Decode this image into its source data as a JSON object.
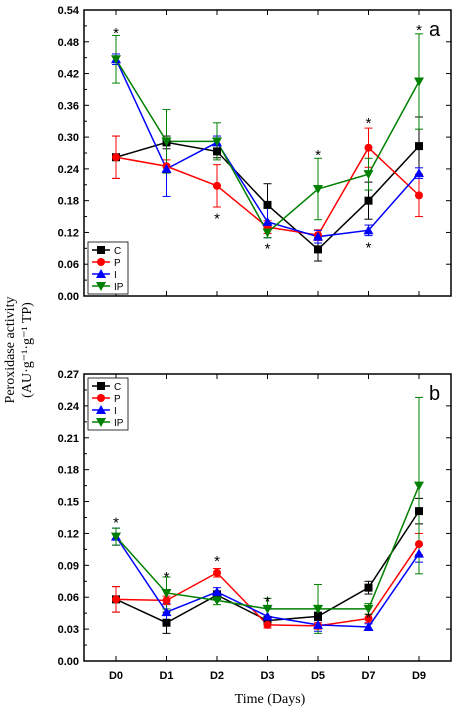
{
  "chart_data": [
    {
      "type": "line",
      "panel_label": "a",
      "categories": [
        "D0",
        "D1",
        "D2",
        "D3",
        "D5",
        "D7",
        "D9"
      ],
      "ylim": [
        0,
        0.54
      ],
      "yticks": [
        "0.00",
        "0.06",
        "0.12",
        "0.18",
        "0.24",
        "0.30",
        "0.36",
        "0.42",
        "0.48",
        "0.54"
      ],
      "series": [
        {
          "name": "C",
          "color": "#000000",
          "marker": "square",
          "values": [
            0.262,
            0.29,
            0.273,
            0.172,
            0.088,
            0.18,
            0.283
          ],
          "errors": [
            0.04,
            0.012,
            0.012,
            0.04,
            0.022,
            0.035,
            0.055
          ]
        },
        {
          "name": "P",
          "color": "#ff0000",
          "marker": "circle",
          "values": [
            0.262,
            0.245,
            0.208,
            0.13,
            0.115,
            0.28,
            0.19
          ],
          "errors": [
            0.04,
            0.012,
            0.04,
            0.012,
            0.01,
            0.037,
            0.04
          ]
        },
        {
          "name": "I",
          "color": "#0000ff",
          "marker": "triangle-up",
          "values": [
            0.447,
            0.24,
            0.29,
            0.14,
            0.112,
            0.124,
            0.232
          ],
          "errors": [
            0.01,
            0.052,
            0.012,
            0.03,
            0.012,
            0.01,
            0.01
          ]
        },
        {
          "name": "IP",
          "color": "#008000",
          "marker": "triangle-down",
          "values": [
            0.447,
            0.292,
            0.292,
            0.12,
            0.202,
            0.23,
            0.405
          ],
          "errors": [
            0.045,
            0.06,
            0.035,
            0.01,
            0.058,
            0.03,
            0.09
          ]
        }
      ],
      "annotations": [
        {
          "text": "*",
          "category": "D0",
          "y": 0.5
        },
        {
          "text": "*",
          "category": "D2",
          "y": 0.15
        },
        {
          "text": "*",
          "category": "D3",
          "y": 0.093
        },
        {
          "text": "*",
          "category": "D5",
          "y": 0.27
        },
        {
          "text": "*",
          "category": "D7",
          "y": 0.33
        },
        {
          "text": "*",
          "category": "D7",
          "y": 0.095
        },
        {
          "text": "*",
          "category": "D9",
          "y": 0.506
        }
      ]
    },
    {
      "type": "line",
      "panel_label": "b",
      "categories": [
        "D0",
        "D1",
        "D2",
        "D3",
        "D5",
        "D7",
        "D9"
      ],
      "ylim": [
        0,
        0.27
      ],
      "yticks": [
        "0.00",
        "0.03",
        "0.06",
        "0.09",
        "0.12",
        "0.15",
        "0.18",
        "0.21",
        "0.24",
        "0.27"
      ],
      "series": [
        {
          "name": "C",
          "color": "#000000",
          "marker": "square",
          "values": [
            0.058,
            0.036,
            0.062,
            0.038,
            0.042,
            0.069,
            0.141
          ],
          "errors": [
            0.012,
            0.01,
            0.004,
            0.004,
            0.004,
            0.006,
            0.012
          ]
        },
        {
          "name": "P",
          "color": "#ff0000",
          "marker": "circle",
          "values": [
            0.058,
            0.057,
            0.083,
            0.034,
            0.033,
            0.04,
            0.11
          ],
          "errors": [
            0.012,
            0.004,
            0.004,
            0.003,
            0.003,
            0.004,
            0.01
          ]
        },
        {
          "name": "I",
          "color": "#0000ff",
          "marker": "triangle-up",
          "values": [
            0.117,
            0.046,
            0.065,
            0.042,
            0.034,
            0.032,
            0.101
          ],
          "errors": [
            0.008,
            0.008,
            0.004,
            0.008,
            0.006,
            0.003,
            0.008
          ]
        },
        {
          "name": "IP",
          "color": "#008000",
          "marker": "triangle-down",
          "values": [
            0.117,
            0.064,
            0.057,
            0.049,
            0.049,
            0.049,
            0.165
          ],
          "errors": [
            0.008,
            0.015,
            0.004,
            0.01,
            0.023,
            0.005,
            0.083
          ]
        }
      ],
      "annotations": [
        {
          "text": "*",
          "category": "D0",
          "y": 0.132
        },
        {
          "text": "*",
          "category": "D1",
          "y": 0.081
        },
        {
          "text": "*",
          "category": "D2",
          "y": 0.096
        },
        {
          "text": "*",
          "category": "D3",
          "y": 0.058
        },
        {
          "text": "*",
          "category": "D7",
          "y": 0.043
        }
      ]
    }
  ],
  "xlabel": "Time (Days)",
  "ylabel": "Peroxidase activity",
  "ylabel_unit": "(AU·g⁻¹·g⁻¹ TP)"
}
